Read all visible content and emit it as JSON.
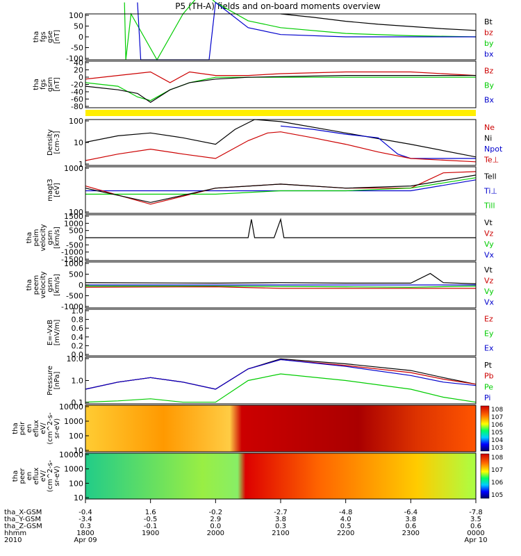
{
  "title": "P5 (TH-A) fields and on-board moments overview",
  "chart_data": [
    {
      "type": "line",
      "panel": "fgs-gse",
      "ylabel": [
        "tha",
        "fgs",
        "gse",
        "[nT]"
      ],
      "yticks": [
        "100",
        "50",
        "0",
        "-50",
        "-100"
      ],
      "ylim": [
        -100,
        100
      ],
      "legend": [
        {
          "label": "Bt",
          "color": "#000000"
        },
        {
          "label": "bz",
          "color": "#cc0000"
        },
        {
          "label": "by",
          "color": "#00cc00"
        },
        {
          "label": "bx",
          "color": "#0000cc"
        }
      ],
      "series": [
        {
          "color": "#000000",
          "x": [
            21.0,
            21.5,
            22.0,
            22.5,
            23.0,
            23.5,
            24.0
          ],
          "y": [
            100,
            85,
            68,
            55,
            45,
            35,
            28
          ]
        },
        {
          "color": "#00cc00",
          "x": [
            18.6,
            18.62,
            18.7,
            19.1,
            19.5,
            19.8,
            20.0,
            20.5,
            21.0,
            22.0,
            23.0,
            24.0
          ],
          "y": [
            150,
            -100,
            100,
            -100,
            100,
            200,
            150,
            70,
            40,
            15,
            5,
            0
          ]
        },
        {
          "color": "#0000cc",
          "x": [
            18.8,
            18.85,
            19.9,
            20.0,
            20.5,
            21.0,
            22.0,
            23.0,
            24.0
          ],
          "y": [
            150,
            -100,
            -100,
            150,
            40,
            10,
            0,
            0,
            0
          ]
        }
      ]
    },
    {
      "type": "line",
      "panel": "fgs-gsm",
      "ylabel": [
        "tha",
        "fgs",
        "gsm",
        "[nT]"
      ],
      "yticks": [
        "40",
        "20",
        "0",
        "-20",
        "-40",
        "-60",
        "-80"
      ],
      "ylim": [
        -90,
        40
      ],
      "legend": [
        {
          "label": "Bz",
          "color": "#cc0000"
        },
        {
          "label": "By",
          "color": "#00cc00"
        },
        {
          "label": "Bx",
          "color": "#0000cc"
        }
      ],
      "series": [
        {
          "color": "#cc0000",
          "x": [
            18.0,
            18.5,
            19.0,
            19.3,
            19.6,
            20.0,
            20.5,
            21.0,
            22.0,
            23.0,
            24.0
          ],
          "y": [
            -10,
            0,
            10,
            -20,
            10,
            0,
            0,
            5,
            10,
            10,
            0
          ]
        },
        {
          "color": "#00cc00",
          "x": [
            18.0,
            18.5,
            18.8,
            19.0,
            19.3,
            19.6,
            20.0,
            20.5,
            21.0,
            22.0,
            23.0,
            24.0
          ],
          "y": [
            -20,
            -30,
            -60,
            -70,
            -40,
            -20,
            -5,
            -5,
            -5,
            -5,
            -5,
            -5
          ]
        },
        {
          "color": "#000000",
          "x": [
            18.0,
            18.5,
            18.8,
            19.0,
            19.3,
            19.6,
            20.0,
            20.5,
            21.0,
            22.0,
            23.0,
            24.0
          ],
          "y": [
            -30,
            -40,
            -50,
            -75,
            -40,
            -20,
            -10,
            -5,
            -3,
            0,
            0,
            0
          ]
        }
      ]
    },
    {
      "type": "line",
      "panel": "density",
      "scale": "log",
      "ylabel": [
        "Density",
        "[cm-3]"
      ],
      "yticks": [
        "100",
        "10",
        "1"
      ],
      "ylim": [
        0.3,
        200
      ],
      "legend": [
        {
          "label": "Ne",
          "color": "#cc0000"
        },
        {
          "label": "Ni",
          "color": "#000000"
        },
        {
          "label": "Npot",
          "color": "#0000cc"
        },
        {
          "label": "Te⊥",
          "color": "#cc0000"
        }
      ],
      "series": [
        {
          "color": "#000000",
          "x": [
            18.0,
            18.5,
            19.0,
            19.5,
            20.0,
            20.3,
            20.6,
            21.0,
            22.0,
            23.0,
            24.0
          ],
          "y": [
            8,
            20,
            30,
            15,
            6,
            50,
            200,
            150,
            30,
            6,
            1
          ]
        },
        {
          "color": "#0000cc",
          "x": [
            21.0,
            21.5,
            22.0,
            22.5,
            22.8,
            23.0,
            24.0
          ],
          "y": [
            80,
            50,
            25,
            15,
            1.5,
            0.8,
            0.8
          ]
        },
        {
          "color": "#cc0000",
          "x": [
            18.0,
            18.5,
            19.0,
            19.5,
            20.0,
            20.5,
            20.8,
            21.0,
            21.5,
            22.0,
            22.5,
            23.0,
            24.0
          ],
          "y": [
            0.6,
            1.5,
            3,
            1.5,
            0.8,
            10,
            30,
            35,
            15,
            6,
            2,
            0.8,
            0.5
          ]
        }
      ]
    },
    {
      "type": "line",
      "panel": "temperature",
      "scale": "log",
      "ylabel": [
        "magt3",
        "[eV]"
      ],
      "yticks": [
        "1000",
        "100"
      ],
      "ylim": [
        60,
        3000
      ],
      "legend": [
        {
          "label": "Tell",
          "color": "#000000"
        },
        {
          "label": "Ti⊥",
          "color": "#0000cc"
        },
        {
          "label": "Till",
          "color": "#00cc00"
        }
      ],
      "series": [
        {
          "color": "#0000cc",
          "x": [
            18.0,
            20.0,
            22.0,
            23.0,
            24.0
          ],
          "y": [
            400,
            400,
            400,
            400,
            1000
          ]
        },
        {
          "color": "#cc0000",
          "x": [
            18.0,
            19.0,
            20.0,
            21.0,
            22.0,
            23.0,
            23.5,
            24.0
          ],
          "y": [
            600,
            130,
            500,
            700,
            500,
            500,
            1800,
            2000
          ]
        },
        {
          "color": "#00cc00",
          "x": [
            18.0,
            19.0,
            20.0,
            21.0,
            22.0,
            23.0,
            24.0
          ],
          "y": [
            300,
            300,
            300,
            400,
            400,
            500,
            1200
          ]
        },
        {
          "color": "#000000",
          "x": [
            18.0,
            19.0,
            20.0,
            21.0,
            22.0,
            23.0,
            24.0
          ],
          "y": [
            500,
            150,
            500,
            700,
            500,
            600,
            1500
          ]
        }
      ]
    },
    {
      "type": "line",
      "panel": "peim-velocity",
      "ylabel": [
        "tha",
        "peim",
        "velocity",
        "gsm",
        "[km/s]"
      ],
      "yticks": [
        "1500",
        "1000",
        "500",
        "0",
        "-500",
        "-1000",
        "-1500"
      ],
      "ylim": [
        -1500,
        1500
      ],
      "legend": [
        {
          "label": "Vt",
          "color": "#000000"
        },
        {
          "label": "Vz",
          "color": "#cc0000"
        },
        {
          "label": "Vy",
          "color": "#00cc00"
        },
        {
          "label": "Vx",
          "color": "#0000cc"
        }
      ],
      "series": [
        {
          "color": "#000000",
          "x": [
            18.0,
            20.5,
            20.55,
            20.6,
            20.9,
            21.0,
            21.05,
            24.0
          ],
          "y": [
            0,
            0,
            1200,
            0,
            0,
            1200,
            0,
            0
          ]
        }
      ]
    },
    {
      "type": "line",
      "panel": "peem-velocity",
      "ylabel": [
        "tha",
        "peem",
        "velocity",
        "gsm",
        "[km/s]"
      ],
      "yticks": [
        "1000",
        "500",
        "0",
        "-500",
        "-1000"
      ],
      "ylim": [
        -1000,
        1000
      ],
      "legend": [
        {
          "label": "Vt",
          "color": "#000000"
        },
        {
          "label": "Vz",
          "color": "#cc0000"
        },
        {
          "label": "Vy",
          "color": "#00cc00"
        },
        {
          "label": "Vx",
          "color": "#0000cc"
        }
      ],
      "series": [
        {
          "color": "#000000",
          "x": [
            18.0,
            20.0,
            21.0,
            22.0,
            23.0,
            23.3,
            23.5,
            24.0
          ],
          "y": [
            100,
            80,
            100,
            80,
            80,
            500,
            100,
            50
          ]
        },
        {
          "color": "#0000cc",
          "x": [
            18.0,
            20.0,
            22.0,
            23.0,
            24.0
          ],
          "y": [
            0,
            0,
            0,
            0,
            0
          ]
        },
        {
          "color": "#00cc00",
          "x": [
            18.0,
            20.0,
            22.0,
            23.0,
            24.0
          ],
          "y": [
            -50,
            -50,
            -80,
            -100,
            -50
          ]
        },
        {
          "color": "#cc0000",
          "x": [
            18.0,
            20.0,
            21.0,
            22.0,
            23.0,
            24.0
          ],
          "y": [
            -100,
            -80,
            -150,
            -150,
            -150,
            -150
          ]
        }
      ]
    },
    {
      "type": "line",
      "panel": "efield",
      "ylabel": [
        "E=-VxB",
        "[mV/m]"
      ],
      "yticks": [
        "1.0",
        "0.8",
        "0.6",
        "0.4",
        "0.2",
        "0.0"
      ],
      "ylim": [
        0,
        1
      ],
      "legend": [
        {
          "label": "Ez",
          "color": "#cc0000"
        },
        {
          "label": "Ey",
          "color": "#00cc00"
        },
        {
          "label": "Ex",
          "color": "#0000cc"
        }
      ],
      "series": []
    },
    {
      "type": "line",
      "panel": "pressure",
      "scale": "log",
      "ylabel": [
        "Pressure",
        "[nPa]"
      ],
      "yticks": [
        "10.0",
        "1.0",
        "0.1"
      ],
      "ylim": [
        0.04,
        25
      ],
      "legend": [
        {
          "label": "Pt",
          "color": "#000000"
        },
        {
          "label": "Pb",
          "color": "#cc0000"
        },
        {
          "label": "Pe",
          "color": "#00cc00"
        },
        {
          "label": "Pi",
          "color": "#0000cc"
        }
      ],
      "series": [
        {
          "color": "#000000",
          "x": [
            18.0,
            18.5,
            19.0,
            19.5,
            20.0,
            20.5,
            21.0,
            22.0,
            23.0,
            23.5,
            24.0
          ],
          "y": [
            0.3,
            0.8,
            1.5,
            0.8,
            0.3,
            5,
            20,
            10,
            4,
            1.5,
            0.6
          ]
        },
        {
          "color": "#cc0000",
          "x": [
            18.0,
            18.5,
            19.0,
            19.5,
            20.0,
            20.5,
            21.0,
            22.0,
            23.0,
            23.5,
            24.0
          ],
          "y": [
            0.3,
            0.8,
            1.5,
            0.8,
            0.3,
            5,
            18,
            8,
            3,
            1.2,
            0.6
          ]
        },
        {
          "color": "#0000cc",
          "x": [
            18.0,
            18.5,
            19.0,
            19.5,
            20.0,
            20.5,
            21.0,
            22.0,
            23.0,
            23.5,
            24.0
          ],
          "y": [
            0.3,
            0.8,
            1.5,
            0.8,
            0.3,
            5,
            18,
            7,
            2,
            0.8,
            0.5
          ]
        },
        {
          "color": "#00cc00",
          "x": [
            18.0,
            18.5,
            19.0,
            19.5,
            20.0,
            20.5,
            21.0,
            22.0,
            23.0,
            23.5,
            24.0
          ],
          "y": [
            0.05,
            0.06,
            0.08,
            0.05,
            0.05,
            1,
            2.5,
            1,
            0.3,
            0.1,
            0.05
          ]
        }
      ]
    },
    {
      "type": "heatmap",
      "panel": "peir",
      "ylabel": [
        "tha",
        "peir",
        "en",
        "eflux",
        "eV/",
        "(cm^2-s-",
        "sr-eV)"
      ],
      "yticks": [
        "10000",
        "1000",
        "100",
        "10"
      ],
      "colorbar_ticks": [
        "10^8",
        "10^7",
        "10^6",
        "10^5",
        "10^4",
        "10^3"
      ]
    },
    {
      "type": "heatmap",
      "panel": "peer",
      "ylabel": [
        "tha",
        "peer",
        "en",
        "eflux",
        "eV/",
        "(cm^2-s-",
        "sr-eV)"
      ],
      "yticks": [
        "10000",
        "1000",
        "100",
        "10"
      ],
      "colorbar_ticks": [
        "10^8",
        "10^7",
        "10^6",
        "10^5"
      ]
    }
  ],
  "xaxis": {
    "row_labels": [
      "tha_X-GSM",
      "tha_Y-GSM",
      "tha_Z-GSM",
      "hhmm",
      "2010"
    ],
    "columns": [
      {
        "x": 18.0,
        "vals": [
          "-0.4",
          "-3.4",
          "0.3",
          "1800",
          "Apr 09"
        ]
      },
      {
        "x": 19.0,
        "vals": [
          "1.6",
          "-0.5",
          "-0.1",
          "1900",
          ""
        ]
      },
      {
        "x": 20.0,
        "vals": [
          "-0.2",
          "2.9",
          "0.0",
          "2000",
          ""
        ]
      },
      {
        "x": 21.0,
        "vals": [
          "-2.7",
          "3.8",
          "0.3",
          "2100",
          ""
        ]
      },
      {
        "x": 22.0,
        "vals": [
          "-4.8",
          "4.0",
          "0.5",
          "2200",
          ""
        ]
      },
      {
        "x": 23.0,
        "vals": [
          "-6.4",
          "3.8",
          "0.6",
          "2300",
          ""
        ]
      },
      {
        "x": 24.0,
        "vals": [
          "-7.8",
          "3.5",
          "0.6",
          "0000",
          "Apr 10"
        ]
      }
    ]
  }
}
